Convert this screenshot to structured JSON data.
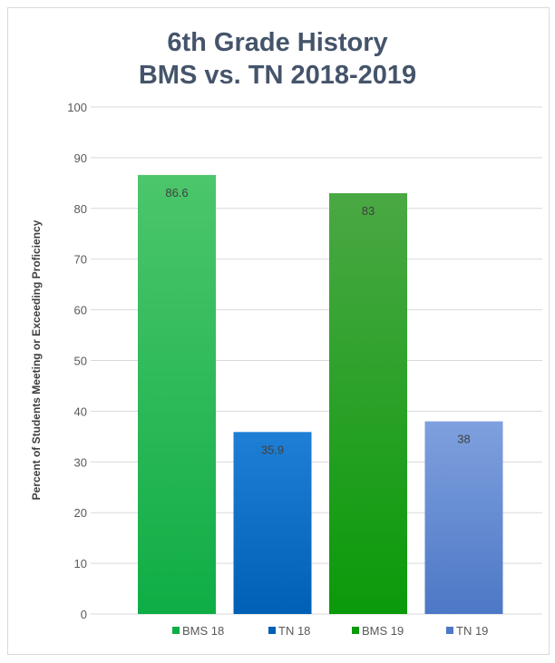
{
  "chart_data": {
    "type": "bar",
    "title_line1": "6th Grade History",
    "title_line2": "BMS vs. TN 2018-2019",
    "ylabel": "Percent of Students Meeting or Exceeding Proficiency",
    "ylim": [
      0,
      100
    ],
    "yticks": [
      "0",
      "10",
      "20",
      "30",
      "40",
      "50",
      "60",
      "70",
      "80",
      "90",
      "100"
    ],
    "grid": true,
    "legend_position": "bottom",
    "categories": [
      "BMS 18",
      "TN 18",
      "BMS 19",
      "TN 19"
    ],
    "values": [
      86.6,
      35.9,
      83,
      38
    ],
    "data_labels": [
      "86.6",
      "35.9",
      "83",
      "38"
    ],
    "colors": {
      "bms18": [
        "#4cc66b",
        "#0fad45"
      ],
      "tn18": [
        "#1f7fd6",
        "#0060b5"
      ],
      "bms19": [
        "#4aa844",
        "#0a9a0a"
      ],
      "tn19": [
        "#7fa0de",
        "#4d78c6"
      ],
      "grid": "#d9d9d9",
      "title": "#44546a"
    }
  }
}
